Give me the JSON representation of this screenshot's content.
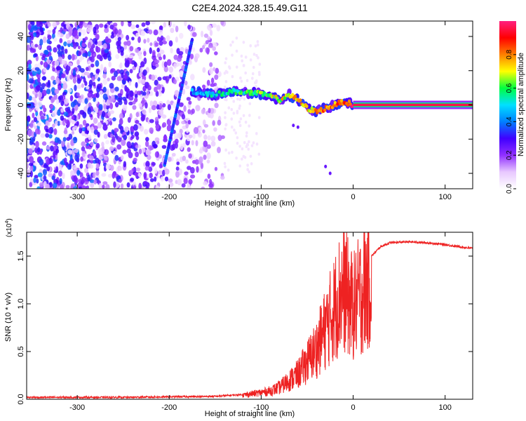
{
  "title": "C2E4.2024.328.15.49.G11",
  "chart_data": [
    {
      "type": "heatmap",
      "xlabel": "Height of straight line (km)",
      "ylabel": "Frequency (Hz)",
      "xlim": [
        -355,
        130
      ],
      "ylim": [
        -49,
        49
      ],
      "xticks": [
        "-300",
        "-200",
        "-100",
        "0",
        "100"
      ],
      "yticks": [
        "-40",
        "-20",
        "0",
        "20",
        "40"
      ],
      "grid": false,
      "colorbar": {
        "label": "Normalized spectral amplitude",
        "range": [
          0,
          1
        ],
        "ticks": [
          "0.0",
          "0.2",
          "0.4",
          "0.6",
          "0.8"
        ],
        "colors": [
          "#ffffff",
          "#e8c8ff",
          "#9030ff",
          "#4000ff",
          "#0080ff",
          "#00e0ff",
          "#00ff40",
          "#ffff00",
          "#ff8000",
          "#ff0000",
          "#ff2080"
        ]
      },
      "features": [
        {
          "name": "noise",
          "x": [
            -355,
            -140
          ],
          "y": [
            -49,
            49
          ],
          "amplitude": 0.15
        },
        {
          "name": "streak",
          "x": [
            -205,
            -175
          ],
          "y": [
            -35,
            38
          ],
          "amplitude": 0.35
        },
        {
          "name": "main trace",
          "points": [
            [
              -175,
              8
            ],
            [
              -150,
              6
            ],
            [
              -130,
              8
            ],
            [
              -110,
              7
            ],
            [
              -95,
              6
            ],
            [
              -80,
              3
            ],
            [
              -70,
              6
            ],
            [
              -60,
              3
            ],
            [
              -50,
              -2
            ],
            [
              -40,
              -4
            ],
            [
              -30,
              -2
            ],
            [
              -20,
              0
            ],
            [
              -10,
              2
            ],
            [
              0,
              0
            ],
            [
              130,
              0
            ]
          ],
          "amplitude": [
            0.3,
            1.0
          ]
        }
      ]
    },
    {
      "type": "line",
      "xlabel": "Height of straight line (km)",
      "ylabel": "SNR (10 * v/v)",
      "y_multiplier": "(x10",
      "y_multiplier_exp": "4",
      "multiplier_close": ")",
      "xlim": [
        -355,
        130
      ],
      "ylim": [
        0,
        1.75
      ],
      "xticks": [
        "-300",
        "-200",
        "-100",
        "0",
        "100"
      ],
      "yticks": [
        "0.0",
        "0.5",
        "1.0",
        "1.5"
      ],
      "color": "#ee2222",
      "x": [
        -355,
        -250,
        -150,
        -120,
        -100,
        -90,
        -80,
        -70,
        -60,
        -50,
        -40,
        -30,
        -20,
        -15,
        -10,
        -5,
        0,
        10,
        20,
        30,
        40,
        60,
        80,
        100,
        130
      ],
      "y": [
        0.02,
        0.02,
        0.03,
        0.05,
        0.08,
        0.1,
        0.14,
        0.22,
        0.3,
        0.45,
        0.6,
        0.85,
        1.1,
        1.25,
        1.35,
        1.2,
        1.1,
        1.3,
        1.5,
        1.6,
        1.64,
        1.65,
        1.64,
        1.62,
        1.58
      ]
    }
  ]
}
